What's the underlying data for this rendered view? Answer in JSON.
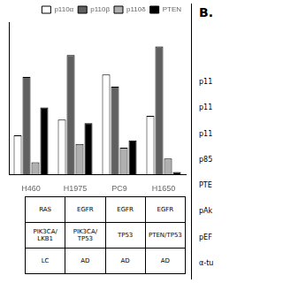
{
  "chart_data": {
    "type": "bar",
    "categories": [
      "H460",
      "H1975",
      "PC9",
      "H1650"
    ],
    "series": [
      {
        "name": "p110α",
        "color": "white",
        "values": [
          3.2,
          4.5,
          8.2,
          4.8
        ]
      },
      {
        "name": "p110β",
        "color": "#606060",
        "values": [
          8.0,
          9.8,
          7.2,
          10.5
        ]
      },
      {
        "name": "p110δ",
        "color": "#b0b0b0",
        "values": [
          1.0,
          2.5,
          2.2,
          1.3
        ]
      },
      {
        "name": "PTEN",
        "color": "black",
        "values": [
          5.5,
          4.2,
          2.8,
          0.2
        ]
      }
    ],
    "ylim": [
      0,
      12.5
    ],
    "grid": false,
    "legend": "upper right",
    "tick_labels": "x",
    "table": [
      [
        "RAS",
        "EGFR",
        "EGFR",
        "EGFR"
      ],
      [
        "PIK3CA/\nLKB1",
        "PIK3CA/\nTP53",
        "TP53",
        "PTEN/TP53"
      ],
      [
        "LC",
        "AD",
        "AD",
        "AD"
      ]
    ],
    "annotations": [
      "B.",
      "p11",
      "p11",
      "p11",
      "p85",
      "PTE",
      "pAk",
      "pEF",
      "α-tu"
    ]
  }
}
